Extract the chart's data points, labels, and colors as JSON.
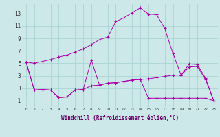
{
  "xlabel": "Windchill (Refroidissement éolien,°C)",
  "background_color": "#cce8e8",
  "grid_color": "#aad4d4",
  "line_color": "#aa00aa",
  "xlim": [
    -0.5,
    23.5
  ],
  "ylim": [
    -2.0,
    14.5
  ],
  "yticks": [
    -1,
    1,
    3,
    5,
    7,
    9,
    11,
    13
  ],
  "xticks": [
    0,
    1,
    2,
    3,
    4,
    5,
    6,
    7,
    8,
    9,
    10,
    11,
    12,
    13,
    14,
    15,
    16,
    17,
    18,
    19,
    20,
    21,
    22,
    23
  ],
  "series1": [
    5.2,
    5.0,
    5.3,
    5.6,
    6.0,
    6.3,
    6.8,
    7.3,
    8.0,
    8.8,
    9.2,
    11.7,
    12.3,
    13.1,
    13.9,
    12.9,
    12.8,
    10.6,
    6.6,
    3.1,
    4.9,
    4.8,
    2.6,
    -1.0
  ],
  "series2": [
    5.2,
    0.7,
    0.8,
    0.7,
    -0.5,
    -0.4,
    0.7,
    0.8,
    5.5,
    1.5,
    1.8,
    1.9,
    2.1,
    2.3,
    2.4,
    -0.6,
    -0.6,
    -0.6,
    -0.6,
    -0.6,
    -0.6,
    -0.6,
    -0.6,
    -1.0
  ],
  "series3": [
    5.2,
    0.7,
    0.8,
    0.7,
    -0.5,
    -0.4,
    0.7,
    0.8,
    1.4,
    1.5,
    1.8,
    1.9,
    2.1,
    2.3,
    2.4,
    2.5,
    2.7,
    2.9,
    3.1,
    3.1,
    4.4,
    4.5,
    2.4,
    -1.0
  ]
}
